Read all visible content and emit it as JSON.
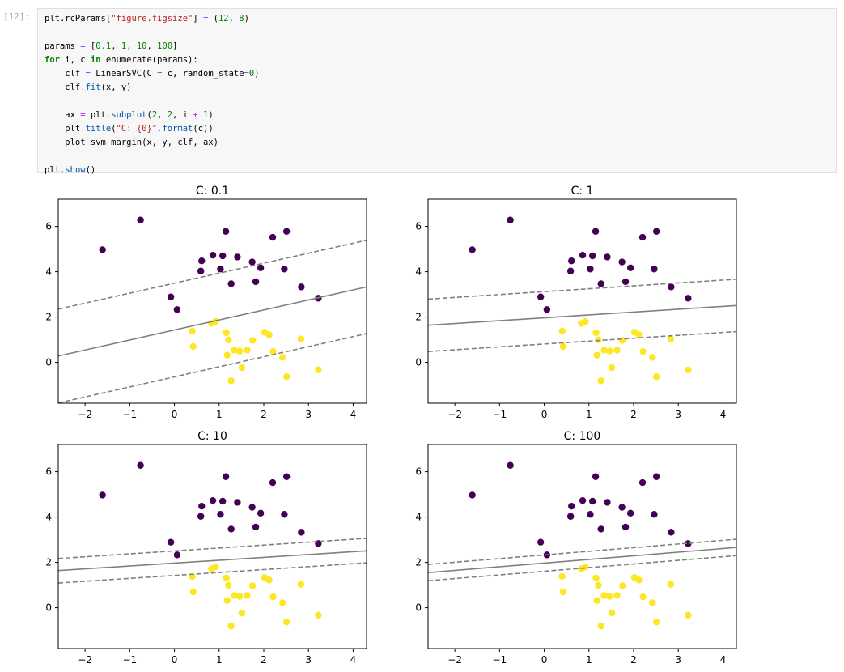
{
  "cell": {
    "prompt": "[12]:",
    "code": [
      "plt.rcParams[\"figure.figsize\"] = (12, 8)",
      "",
      "params = [0.1, 1, 10, 100]",
      "for i, c in enumerate(params):",
      "    clf = LinearSVC(C = c, random_state=0)",
      "    clf.fit(x, y)",
      "",
      "    ax = plt.subplot(2, 2, i + 1)",
      "    plt.title(\"C: {0}\".format(c))",
      "    plot_svm_margin(x, y, clf, ax)",
      "",
      "plt.show()"
    ]
  },
  "colors": {
    "class0": "#440154",
    "class1": "#fde725",
    "line": "#808080",
    "axis": "#000000"
  },
  "chart_data": [
    {
      "type": "scatter",
      "title": "C: 0.1",
      "xlim": [
        -2.6,
        4.3
      ],
      "ylim": [
        -1.8,
        7.2
      ],
      "xticks": [
        -2,
        -1,
        0,
        1,
        2,
        3,
        4
      ],
      "yticks": [
        0,
        2,
        4,
        6
      ],
      "decision_line": {
        "x": [
          -2.6,
          4.3
        ],
        "y": [
          0.28,
          3.33
        ]
      },
      "margin_lines": [
        {
          "x": [
            -2.6,
            4.3
          ],
          "y": [
            2.35,
            5.39
          ]
        },
        {
          "x": [
            -2.6,
            4.3
          ],
          "y": [
            -1.79,
            1.27
          ]
        }
      ]
    },
    {
      "type": "scatter",
      "title": "C: 1",
      "xlim": [
        -2.6,
        4.3
      ],
      "ylim": [
        -1.8,
        7.2
      ],
      "xticks": [
        -2,
        -1,
        0,
        1,
        2,
        3,
        4
      ],
      "yticks": [
        0,
        2,
        4,
        6
      ],
      "decision_line": {
        "x": [
          -2.6,
          4.3
        ],
        "y": [
          1.64,
          2.51
        ]
      },
      "margin_lines": [
        {
          "x": [
            -2.6,
            4.3
          ],
          "y": [
            2.79,
            3.67
          ]
        },
        {
          "x": [
            -2.6,
            4.3
          ],
          "y": [
            0.48,
            1.36
          ]
        }
      ]
    },
    {
      "type": "scatter",
      "title": "C: 10",
      "xlim": [
        -2.6,
        4.3
      ],
      "ylim": [
        -1.8,
        7.2
      ],
      "xticks": [
        -2,
        -1,
        0,
        1,
        2,
        3,
        4
      ],
      "yticks": [
        0,
        2,
        4,
        6
      ],
      "decision_line": {
        "x": [
          -2.6,
          4.3
        ],
        "y": [
          1.64,
          2.51
        ]
      },
      "margin_lines": [
        {
          "x": [
            -2.6,
            4.3
          ],
          "y": [
            2.17,
            3.06
          ]
        },
        {
          "x": [
            -2.6,
            4.3
          ],
          "y": [
            1.09,
            1.98
          ]
        }
      ]
    },
    {
      "type": "scatter",
      "title": "C: 100",
      "xlim": [
        -2.6,
        4.3
      ],
      "ylim": [
        -1.8,
        7.2
      ],
      "xticks": [
        -2,
        -1,
        0,
        1,
        2,
        3,
        4
      ],
      "yticks": [
        0,
        2,
        4,
        6
      ],
      "decision_line": {
        "x": [
          -2.6,
          4.3
        ],
        "y": [
          1.55,
          2.66
        ]
      },
      "margin_lines": [
        {
          "x": [
            -2.6,
            4.3
          ],
          "y": [
            1.91,
            3.02
          ]
        },
        {
          "x": [
            -2.6,
            4.3
          ],
          "y": [
            1.19,
            2.3
          ]
        }
      ]
    }
  ],
  "points": {
    "class0": [
      [
        -1.61,
        4.97
      ],
      [
        -0.76,
        6.28
      ],
      [
        -0.08,
        2.89
      ],
      [
        0.06,
        2.33
      ],
      [
        0.59,
        4.03
      ],
      [
        0.61,
        4.48
      ],
      [
        0.86,
        4.73
      ],
      [
        1.03,
        4.12
      ],
      [
        1.08,
        4.7
      ],
      [
        1.15,
        5.78
      ],
      [
        1.27,
        3.47
      ],
      [
        1.41,
        4.65
      ],
      [
        1.74,
        4.43
      ],
      [
        1.82,
        3.56
      ],
      [
        1.93,
        4.17
      ],
      [
        2.2,
        5.52
      ],
      [
        2.46,
        4.12
      ],
      [
        2.51,
        5.78
      ],
      [
        2.84,
        3.33
      ],
      [
        3.22,
        2.83
      ]
    ],
    "class1": [
      [
        0.4,
        1.38
      ],
      [
        0.42,
        0.7
      ],
      [
        0.83,
        1.72
      ],
      [
        0.92,
        1.8
      ],
      [
        1.16,
        1.31
      ],
      [
        1.18,
        0.32
      ],
      [
        1.21,
        0.99
      ],
      [
        1.27,
        -0.81
      ],
      [
        1.34,
        0.54
      ],
      [
        1.46,
        0.5
      ],
      [
        1.51,
        -0.23
      ],
      [
        1.63,
        0.54
      ],
      [
        1.75,
        0.97
      ],
      [
        2.02,
        1.33
      ],
      [
        2.12,
        1.22
      ],
      [
        2.21,
        0.48
      ],
      [
        2.42,
        0.22
      ],
      [
        2.51,
        -0.63
      ],
      [
        2.83,
        1.03
      ],
      [
        3.22,
        -0.33
      ]
    ]
  }
}
